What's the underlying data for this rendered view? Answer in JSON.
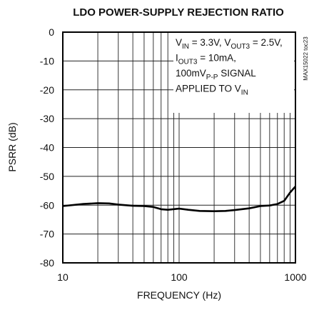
{
  "chart_data": {
    "type": "line",
    "title": "LDO POWER-SUPPLY REJECTION RATIO",
    "xlabel": "FREQUENCY (Hz)",
    "ylabel": "PSRR (dB)",
    "side_label": "MAX15022 toc23",
    "xscale": "log",
    "xlim": [
      10,
      1000
    ],
    "ylim": [
      -80,
      0
    ],
    "xticks": [
      10,
      100,
      1000
    ],
    "minor_xticks": [
      20,
      30,
      40,
      50,
      60,
      70,
      80,
      90,
      200,
      300,
      400,
      500,
      600,
      700,
      800,
      900
    ],
    "yticks": [
      0,
      -10,
      -20,
      -30,
      -40,
      -50,
      -60,
      -70,
      -80
    ],
    "grid": true,
    "color": "#000000",
    "x": [
      10,
      15,
      20,
      25,
      30,
      40,
      50,
      60,
      70,
      80,
      100,
      120,
      150,
      200,
      250,
      300,
      400,
      500,
      600,
      700,
      800,
      900,
      1000
    ],
    "values": [
      -60.3,
      -59.6,
      -59.3,
      -59.4,
      -59.8,
      -60.2,
      -60.3,
      -60.6,
      -61.4,
      -61.6,
      -61.2,
      -61.6,
      -62,
      -62.1,
      -62,
      -61.7,
      -61.1,
      -60.3,
      -60.1,
      -59.6,
      -58.5,
      -55.6,
      -53.5
    ],
    "annotation": [
      [
        {
          "text": "V"
        },
        {
          "text": "IN",
          "sub": true
        },
        {
          "text": " = 3.3V, V"
        },
        {
          "text": "OUT3",
          "sub": true
        },
        {
          "text": " = 2.5V,"
        }
      ],
      [
        {
          "text": "I"
        },
        {
          "text": "OUT3",
          "sub": true
        },
        {
          "text": " = 10mA,"
        }
      ],
      [
        {
          "text": "100mV"
        },
        {
          "text": "P-P",
          "sub": true
        },
        {
          "text": " SIGNAL"
        }
      ],
      [
        {
          "text": "APPLIED TO V"
        },
        {
          "text": "IN",
          "sub": true
        }
      ]
    ]
  }
}
